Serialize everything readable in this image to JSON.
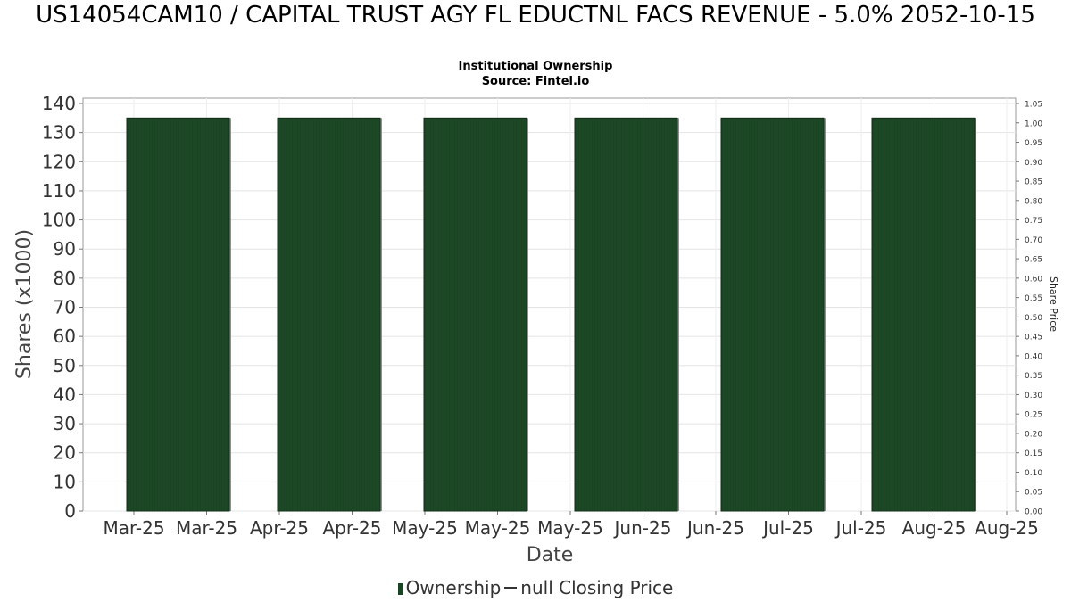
{
  "chart_data": {
    "type": "bar",
    "title": "US14054CAM10 / CAPITAL TRUST AGY FL EDUCTNL FACS REVENUE - 5.0% 2052-10-15",
    "subtitle_lines": [
      "Institutional Ownership",
      "Source: Fintel.io"
    ],
    "xlabel": "Date",
    "ylabel": "Shares (x1000)",
    "y2label": "Share Price",
    "x_tick_labels": [
      "Mar-25",
      "Mar-25",
      "Apr-25",
      "Apr-25",
      "May-25",
      "May-25",
      "May-25",
      "Jun-25",
      "Jun-25",
      "Jul-25",
      "Jul-25",
      "Aug-25",
      "Aug-25"
    ],
    "ylim": [
      0,
      140
    ],
    "y_ticks": [
      0,
      10,
      20,
      30,
      40,
      50,
      60,
      70,
      80,
      90,
      100,
      110,
      120,
      130,
      140
    ],
    "y2lim": [
      0,
      1.05
    ],
    "y2_ticks": [
      "0.00",
      "0.05",
      "0.10",
      "0.15",
      "0.20",
      "0.25",
      "0.30",
      "0.35",
      "0.40",
      "0.45",
      "0.50",
      "0.55",
      "0.60",
      "0.65",
      "0.70",
      "0.75",
      "0.80",
      "0.85",
      "0.90",
      "0.95",
      "1.00",
      "1.05"
    ],
    "series": [
      {
        "name": "Ownership",
        "color": "#1a4424",
        "values": [
          135,
          135,
          135,
          135,
          135,
          135
        ]
      }
    ],
    "grid": true,
    "legend": {
      "placement": "bottom",
      "items": [
        {
          "label": "Ownership",
          "marker": "bar",
          "color": "#1a4424"
        },
        {
          "label": "null Closing Price",
          "marker": "line",
          "color": "#333333"
        }
      ]
    }
  }
}
